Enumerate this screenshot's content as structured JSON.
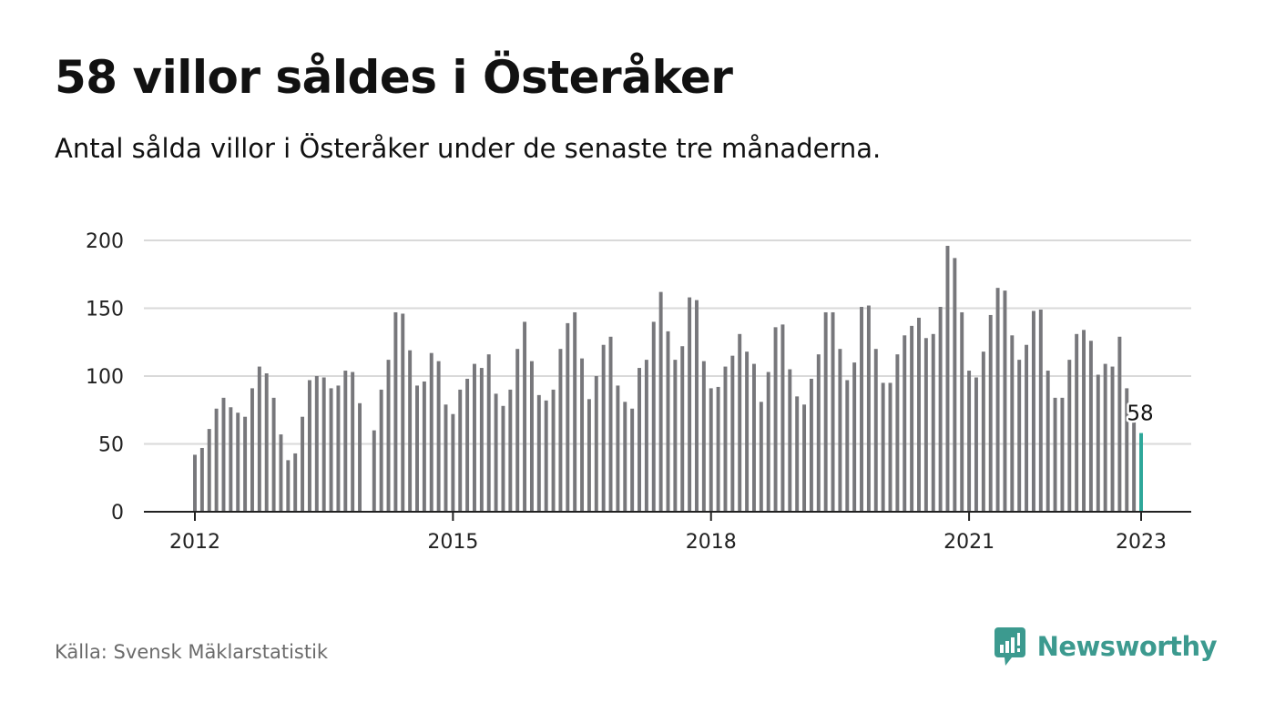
{
  "header": {
    "title": "58 villor såldes i Österåker",
    "subtitle": "Antal sålda villor i Österåker under de senaste tre månaderna."
  },
  "footer": {
    "source": "Källa: Svensk Mäklarstatistik",
    "brand": "Newsworthy"
  },
  "colors": {
    "bar": "#77777b",
    "highlight": "#2ea79a",
    "grid": "#d9d9d9",
    "brand": "#3c9a8f"
  },
  "chart_data": {
    "type": "bar",
    "ylim": [
      0,
      200
    ],
    "yticks": [
      "0",
      "50",
      "100",
      "150",
      "200"
    ],
    "x_start": "2012-01",
    "x_end": "2023-01",
    "xticks": [
      {
        "label": "2012",
        "year": 2012
      },
      {
        "label": "2015",
        "year": 2015
      },
      {
        "label": "2018",
        "year": 2018
      },
      {
        "label": "2021",
        "year": 2021
      },
      {
        "label": "2023",
        "year": 2023
      }
    ],
    "values": [
      42,
      47,
      61,
      76,
      84,
      77,
      73,
      70,
      91,
      107,
      102,
      84,
      57,
      38,
      43,
      70,
      97,
      100,
      99,
      91,
      93,
      104,
      103,
      80,
      0,
      60,
      90,
      112,
      147,
      146,
      119,
      93,
      96,
      117,
      111,
      79,
      72,
      90,
      98,
      109,
      106,
      116,
      87,
      78,
      90,
      120,
      140,
      111,
      86,
      82,
      90,
      120,
      139,
      147,
      113,
      83,
      100,
      123,
      129,
      93,
      81,
      76,
      106,
      112,
      140,
      162,
      133,
      112,
      122,
      158,
      156,
      111,
      91,
      92,
      107,
      115,
      131,
      118,
      109,
      81,
      103,
      136,
      138,
      105,
      85,
      79,
      98,
      116,
      147,
      147,
      120,
      97,
      110,
      151,
      152,
      120,
      95,
      95,
      116,
      130,
      137,
      143,
      128,
      131,
      151,
      196,
      187,
      147,
      104,
      99,
      118,
      145,
      165,
      163,
      130,
      112,
      123,
      148,
      149,
      104,
      84,
      84,
      112,
      131,
      134,
      126,
      101,
      109,
      107,
      129,
      91,
      66,
      58
    ],
    "highlight_last": true,
    "last_label": "58"
  }
}
